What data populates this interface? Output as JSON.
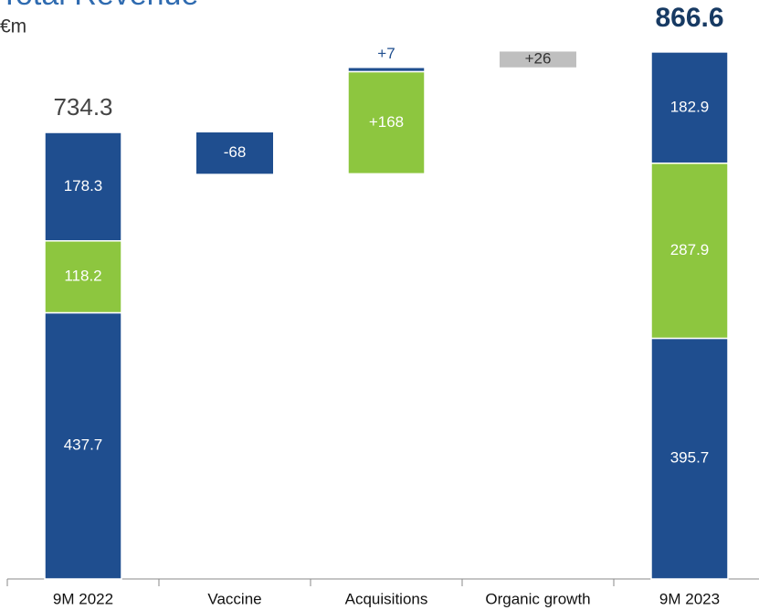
{
  "chart_data": {
    "type": "waterfall",
    "title": "Total Revenue",
    "subtitle": "€m",
    "categories": [
      "9M 2022",
      "Vaccine",
      "Acquisitions",
      "Organic growth",
      "9M 2023"
    ],
    "totals": [
      734.3,
      null,
      null,
      null,
      866.6
    ],
    "bars": [
      [
        {
          "value": 437.7,
          "color": "#1f4e8f"
        },
        {
          "value": 118.2,
          "color": "#8dc63f"
        },
        {
          "value": 178.3,
          "color": "#1f4e8f"
        }
      ],
      [
        {
          "value": -68,
          "color": "#1f4e8f"
        }
      ],
      [
        {
          "value": 168,
          "color": "#8dc63f",
          "value_label": "+168"
        },
        {
          "value": 7,
          "color": "#1f4e8f",
          "value_label": "+7"
        }
      ],
      [
        {
          "value": 26,
          "color": "#bfbfbf",
          "value_label": "+26"
        }
      ],
      [
        {
          "value": 395.7,
          "color": "#1f4e8f"
        },
        {
          "value": 287.9,
          "color": "#8dc63f"
        },
        {
          "value": 182.9,
          "color": "#1f4e8f"
        }
      ]
    ]
  }
}
